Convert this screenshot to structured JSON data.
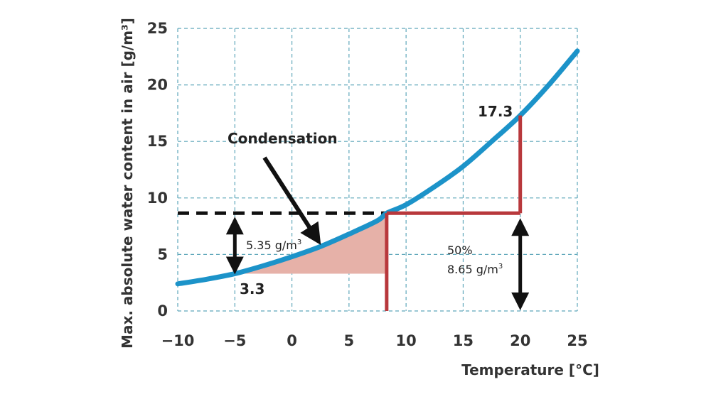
{
  "chart_data": {
    "type": "line",
    "x_label": "Temperature [°C]",
    "y_label": "Max. absolute water content in air [g/m³]",
    "xlim": [
      -10,
      25
    ],
    "ylim": [
      0,
      25
    ],
    "x_ticks": [
      -10,
      -5,
      0,
      5,
      10,
      15,
      20,
      25
    ],
    "y_ticks": [
      0,
      5,
      10,
      15,
      20,
      25
    ],
    "grid": true,
    "grid_style": "dashed",
    "colors": {
      "curve": "#1c93c9",
      "grid": "#5fa7ba",
      "red_lines": "#b8383c",
      "dashed_line": "#111111",
      "shaded_area": "#e6b1a8",
      "arrows": "#111111"
    },
    "series": [
      {
        "x": [
          -10,
          -7.5,
          -5,
          -2.5,
          0,
          2.5,
          5,
          7.5,
          8.3,
          10,
          12.5,
          15,
          17.5,
          20,
          22.5,
          25
        ],
        "y": [
          2.4,
          2.8,
          3.3,
          4.0,
          4.8,
          5.7,
          6.8,
          8.0,
          8.65,
          9.4,
          11.0,
          12.8,
          15.0,
          17.3,
          20.0,
          23.0
        ]
      }
    ],
    "annotations": {
      "condensation_label": "Condensation",
      "label_17_3": "17.3",
      "label_3_3": "3.3",
      "label_5_35_value": "5.35 g/m",
      "label_5_35_sup": "3",
      "label_50pct": "50%",
      "label_8_65_value": "8.65 g/m",
      "label_8_65_sup": "3",
      "dew_point_x": 8.3,
      "dew_point_y": 8.65,
      "saturation_at_20": 17.3,
      "saturation_at_minus5": 3.3,
      "arrow_temperature": 20
    }
  }
}
